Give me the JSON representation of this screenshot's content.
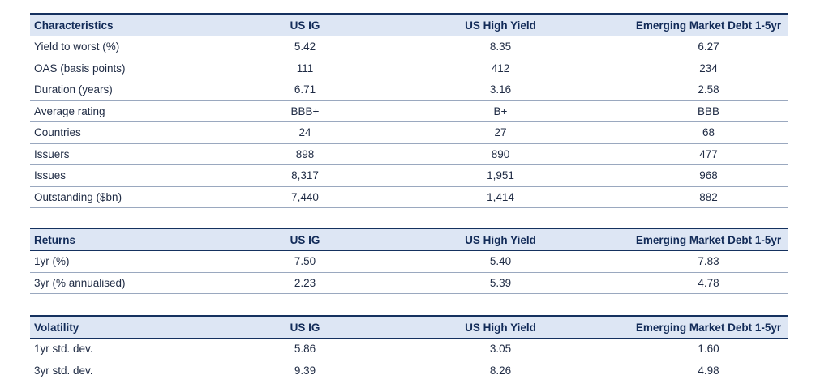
{
  "tables": [
    {
      "headers": [
        "Characteristics",
        "US IG",
        "US High Yield",
        "Emerging Market Debt 1-5yr"
      ],
      "rows": [
        [
          "Yield to worst (%)",
          "5.42",
          "8.35",
          "6.27"
        ],
        [
          "OAS (basis points)",
          "111",
          "412",
          "234"
        ],
        [
          "Duration (years)",
          "6.71",
          "3.16",
          "2.58"
        ],
        [
          "Average rating",
          "BBB+",
          "B+",
          "BBB"
        ],
        [
          "Countries",
          "24",
          "27",
          "68"
        ],
        [
          "Issuers",
          "898",
          "890",
          "477"
        ],
        [
          "Issues",
          "8,317",
          "1,951",
          "968"
        ],
        [
          "Outstanding ($bn)",
          "7,440",
          "1,414",
          "882"
        ]
      ]
    },
    {
      "headers": [
        "Returns",
        "US IG",
        "US High Yield",
        "Emerging Market Debt 1-5yr"
      ],
      "rows": [
        [
          "1yr (%)",
          "7.50",
          "5.40",
          "7.83"
        ],
        [
          "3yr (% annualised)",
          "2.23",
          "5.39",
          "4.78"
        ]
      ]
    },
    {
      "headers": [
        "Volatility",
        "US IG",
        "US High Yield",
        "Emerging Market Debt 1-5yr"
      ],
      "rows": [
        [
          "1yr std. dev.",
          "5.86",
          "3.05",
          "1.60"
        ],
        [
          "3yr std. dev.",
          "9.39",
          "8.26",
          "4.98"
        ]
      ]
    }
  ]
}
